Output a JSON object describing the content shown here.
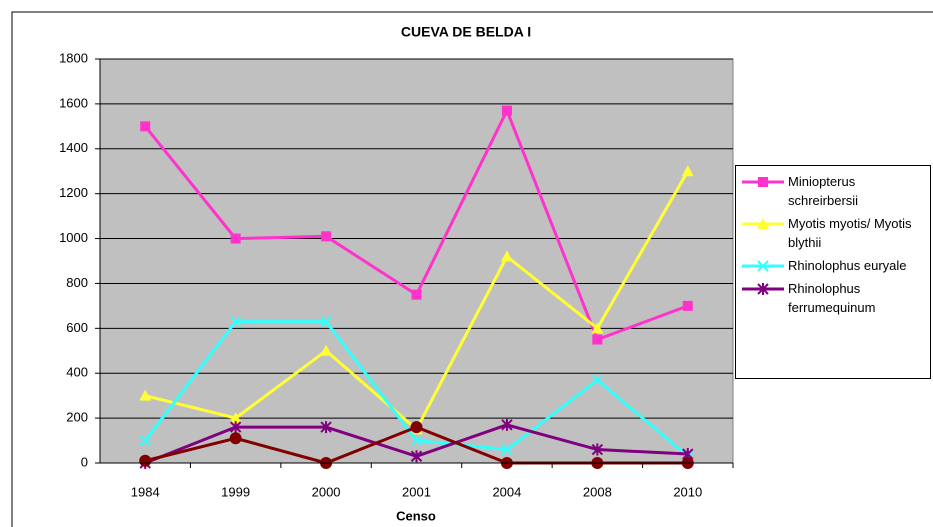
{
  "chart_data": {
    "type": "line",
    "title": "CUEVA DE BELDA I",
    "x_label": "Censo",
    "categories": [
      "1984",
      "1999",
      "2000",
      "2001",
      "2004",
      "2008",
      "2010"
    ],
    "ylim": [
      0,
      1800
    ],
    "yticks": [
      0,
      200,
      400,
      600,
      800,
      1000,
      1200,
      1400,
      1600,
      1800
    ],
    "grid": true,
    "legend": "right",
    "series": [
      {
        "name": "Miniopterus schreirbersii",
        "color": "#ff33cc",
        "marker": "square",
        "values": [
          1500,
          1000,
          1010,
          750,
          1570,
          550,
          700
        ]
      },
      {
        "name": "Myotis myotis/ Myotis blythii",
        "color": "#ffff33",
        "marker": "triangle",
        "values": [
          300,
          200,
          500,
          150,
          920,
          600,
          1300
        ]
      },
      {
        "name": "Rhinolophus euryale",
        "color": "#33ffff",
        "marker": "x",
        "values": [
          100,
          630,
          630,
          100,
          60,
          370,
          30
        ]
      },
      {
        "name": "Rhinolophus ferrumequinum",
        "color": "#800080",
        "marker": "star",
        "values": [
          0,
          160,
          160,
          30,
          170,
          60,
          40
        ]
      },
      {
        "color": "#800000",
        "marker": "circle",
        "values": [
          10,
          110,
          0,
          160,
          0,
          0,
          0
        ]
      }
    ]
  }
}
